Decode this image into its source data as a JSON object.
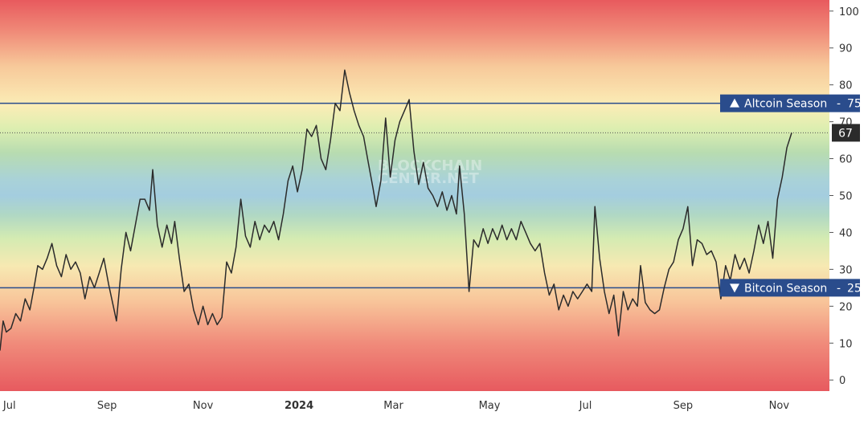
{
  "chart_data": {
    "type": "line",
    "title": "",
    "xlabel": "",
    "ylabel": "",
    "ylim": [
      -3,
      103
    ],
    "y_ticks": [
      0,
      10,
      20,
      30,
      40,
      50,
      60,
      70,
      80,
      90,
      100
    ],
    "x_ticks": [
      {
        "label": "Jul",
        "date": "2023-07-01",
        "bold": false
      },
      {
        "label": "Sep",
        "date": "2023-09-01",
        "bold": false
      },
      {
        "label": "Nov",
        "date": "2023-11-01",
        "bold": false
      },
      {
        "label": "2024",
        "date": "2024-01-01",
        "bold": true
      },
      {
        "label": "Mar",
        "date": "2024-03-01",
        "bold": false
      },
      {
        "label": "May",
        "date": "2024-05-01",
        "bold": false
      },
      {
        "label": "Jul",
        "date": "2024-07-01",
        "bold": false
      },
      {
        "label": "Sep",
        "date": "2024-09-01",
        "bold": false
      },
      {
        "label": "Nov",
        "date": "2024-11-01",
        "bold": false
      }
    ],
    "background": "red-yellow-green-blue gradient by index value",
    "reference_lines": [
      {
        "label": "Altcoin Season",
        "value": 75,
        "direction": "up",
        "color": "#2a4c8c"
      },
      {
        "label": "Bitcoin Season",
        "value": 25,
        "direction": "down",
        "color": "#2a4c8c"
      }
    ],
    "current_value": 67,
    "watermark": "BLOCKCHAIN CENTER.NET",
    "series": [
      {
        "color": "#2b2b2b",
        "points": [
          [
            "2023-06-25",
            8
          ],
          [
            "2023-06-27",
            16
          ],
          [
            "2023-06-29",
            13
          ],
          [
            "2023-07-02",
            14
          ],
          [
            "2023-07-05",
            18
          ],
          [
            "2023-07-08",
            16
          ],
          [
            "2023-07-11",
            22
          ],
          [
            "2023-07-14",
            19
          ],
          [
            "2023-07-17",
            26
          ],
          [
            "2023-07-19",
            31
          ],
          [
            "2023-07-22",
            30
          ],
          [
            "2023-07-25",
            33
          ],
          [
            "2023-07-28",
            37
          ],
          [
            "2023-07-31",
            31
          ],
          [
            "2023-08-03",
            28
          ],
          [
            "2023-08-06",
            34
          ],
          [
            "2023-08-09",
            30
          ],
          [
            "2023-08-12",
            32
          ],
          [
            "2023-08-15",
            29
          ],
          [
            "2023-08-18",
            22
          ],
          [
            "2023-08-21",
            28
          ],
          [
            "2023-08-24",
            25
          ],
          [
            "2023-08-27",
            29
          ],
          [
            "2023-08-30",
            33
          ],
          [
            "2023-09-02",
            26
          ],
          [
            "2023-09-05",
            20
          ],
          [
            "2023-09-07",
            16
          ],
          [
            "2023-09-10",
            30
          ],
          [
            "2023-09-13",
            40
          ],
          [
            "2023-09-16",
            35
          ],
          [
            "2023-09-19",
            42
          ],
          [
            "2023-09-22",
            49
          ],
          [
            "2023-09-25",
            49
          ],
          [
            "2023-09-28",
            46
          ],
          [
            "2023-09-30",
            57
          ],
          [
            "2023-10-03",
            42
          ],
          [
            "2023-10-06",
            36
          ],
          [
            "2023-10-09",
            42
          ],
          [
            "2023-10-12",
            37
          ],
          [
            "2023-10-14",
            43
          ],
          [
            "2023-10-17",
            33
          ],
          [
            "2023-10-20",
            24
          ],
          [
            "2023-10-23",
            26
          ],
          [
            "2023-10-26",
            19
          ],
          [
            "2023-10-29",
            15
          ],
          [
            "2023-11-01",
            20
          ],
          [
            "2023-11-04",
            15
          ],
          [
            "2023-11-07",
            18
          ],
          [
            "2023-11-10",
            15
          ],
          [
            "2023-11-13",
            17
          ],
          [
            "2023-11-16",
            32
          ],
          [
            "2023-11-19",
            29
          ],
          [
            "2023-11-22",
            36
          ],
          [
            "2023-11-25",
            49
          ],
          [
            "2023-11-28",
            39
          ],
          [
            "2023-12-01",
            36
          ],
          [
            "2023-12-04",
            43
          ],
          [
            "2023-12-07",
            38
          ],
          [
            "2023-12-10",
            42
          ],
          [
            "2023-12-13",
            40
          ],
          [
            "2023-12-16",
            43
          ],
          [
            "2023-12-19",
            38
          ],
          [
            "2023-12-22",
            45
          ],
          [
            "2023-12-25",
            54
          ],
          [
            "2023-12-28",
            58
          ],
          [
            "2023-12-31",
            51
          ],
          [
            "2024-01-03",
            57
          ],
          [
            "2024-01-06",
            68
          ],
          [
            "2024-01-09",
            66
          ],
          [
            "2024-01-12",
            69
          ],
          [
            "2024-01-15",
            60
          ],
          [
            "2024-01-18",
            57
          ],
          [
            "2024-01-21",
            65
          ],
          [
            "2024-01-24",
            75
          ],
          [
            "2024-01-27",
            73
          ],
          [
            "2024-01-30",
            84
          ],
          [
            "2024-02-02",
            78
          ],
          [
            "2024-02-05",
            73
          ],
          [
            "2024-02-08",
            69
          ],
          [
            "2024-02-11",
            66
          ],
          [
            "2024-02-14",
            59
          ],
          [
            "2024-02-17",
            52
          ],
          [
            "2024-02-19",
            47
          ],
          [
            "2024-02-22",
            54
          ],
          [
            "2024-02-25",
            71
          ],
          [
            "2024-02-28",
            55
          ],
          [
            "2024-03-02",
            65
          ],
          [
            "2024-03-05",
            70
          ],
          [
            "2024-03-08",
            73
          ],
          [
            "2024-03-11",
            76
          ],
          [
            "2024-03-14",
            62
          ],
          [
            "2024-03-17",
            53
          ],
          [
            "2024-03-20",
            59
          ],
          [
            "2024-03-23",
            52
          ],
          [
            "2024-03-26",
            50
          ],
          [
            "2024-03-29",
            47
          ],
          [
            "2024-04-01",
            51
          ],
          [
            "2024-04-04",
            46
          ],
          [
            "2024-04-07",
            50
          ],
          [
            "2024-04-10",
            45
          ],
          [
            "2024-04-12",
            58
          ],
          [
            "2024-04-15",
            45
          ],
          [
            "2024-04-18",
            24
          ],
          [
            "2024-04-21",
            38
          ],
          [
            "2024-04-24",
            36
          ],
          [
            "2024-04-27",
            41
          ],
          [
            "2024-04-30",
            37
          ],
          [
            "2024-05-03",
            41
          ],
          [
            "2024-05-06",
            38
          ],
          [
            "2024-05-09",
            42
          ],
          [
            "2024-05-12",
            38
          ],
          [
            "2024-05-15",
            41
          ],
          [
            "2024-05-18",
            38
          ],
          [
            "2024-05-21",
            43
          ],
          [
            "2024-05-24",
            40
          ],
          [
            "2024-05-27",
            37
          ],
          [
            "2024-05-30",
            35
          ],
          [
            "2024-06-02",
            37
          ],
          [
            "2024-06-05",
            29
          ],
          [
            "2024-06-08",
            23
          ],
          [
            "2024-06-11",
            26
          ],
          [
            "2024-06-14",
            19
          ],
          [
            "2024-06-17",
            23
          ],
          [
            "2024-06-20",
            20
          ],
          [
            "2024-06-23",
            24
          ],
          [
            "2024-06-26",
            22
          ],
          [
            "2024-06-29",
            24
          ],
          [
            "2024-07-02",
            26
          ],
          [
            "2024-07-05",
            24
          ],
          [
            "2024-07-07",
            47
          ],
          [
            "2024-07-10",
            33
          ],
          [
            "2024-07-13",
            24
          ],
          [
            "2024-07-16",
            18
          ],
          [
            "2024-07-19",
            23
          ],
          [
            "2024-07-22",
            12
          ],
          [
            "2024-07-25",
            24
          ],
          [
            "2024-07-28",
            19
          ],
          [
            "2024-07-31",
            22
          ],
          [
            "2024-08-03",
            20
          ],
          [
            "2024-08-05",
            31
          ],
          [
            "2024-08-08",
            21
          ],
          [
            "2024-08-11",
            19
          ],
          [
            "2024-08-14",
            18
          ],
          [
            "2024-08-17",
            19
          ],
          [
            "2024-08-20",
            25
          ],
          [
            "2024-08-23",
            30
          ],
          [
            "2024-08-26",
            32
          ],
          [
            "2024-08-29",
            38
          ],
          [
            "2024-09-01",
            41
          ],
          [
            "2024-09-04",
            47
          ],
          [
            "2024-09-07",
            31
          ],
          [
            "2024-09-10",
            38
          ],
          [
            "2024-09-13",
            37
          ],
          [
            "2024-09-16",
            34
          ],
          [
            "2024-09-19",
            35
          ],
          [
            "2024-09-22",
            32
          ],
          [
            "2024-09-25",
            22
          ],
          [
            "2024-09-28",
            31
          ],
          [
            "2024-10-01",
            27
          ],
          [
            "2024-10-04",
            34
          ],
          [
            "2024-10-07",
            30
          ],
          [
            "2024-10-10",
            33
          ],
          [
            "2024-10-13",
            29
          ],
          [
            "2024-10-16",
            35
          ],
          [
            "2024-10-19",
            42
          ],
          [
            "2024-10-22",
            37
          ],
          [
            "2024-10-25",
            43
          ],
          [
            "2024-10-28",
            33
          ],
          [
            "2024-10-31",
            49
          ],
          [
            "2024-11-03",
            55
          ],
          [
            "2024-11-06",
            63
          ],
          [
            "2024-11-09",
            67
          ]
        ]
      }
    ]
  }
}
